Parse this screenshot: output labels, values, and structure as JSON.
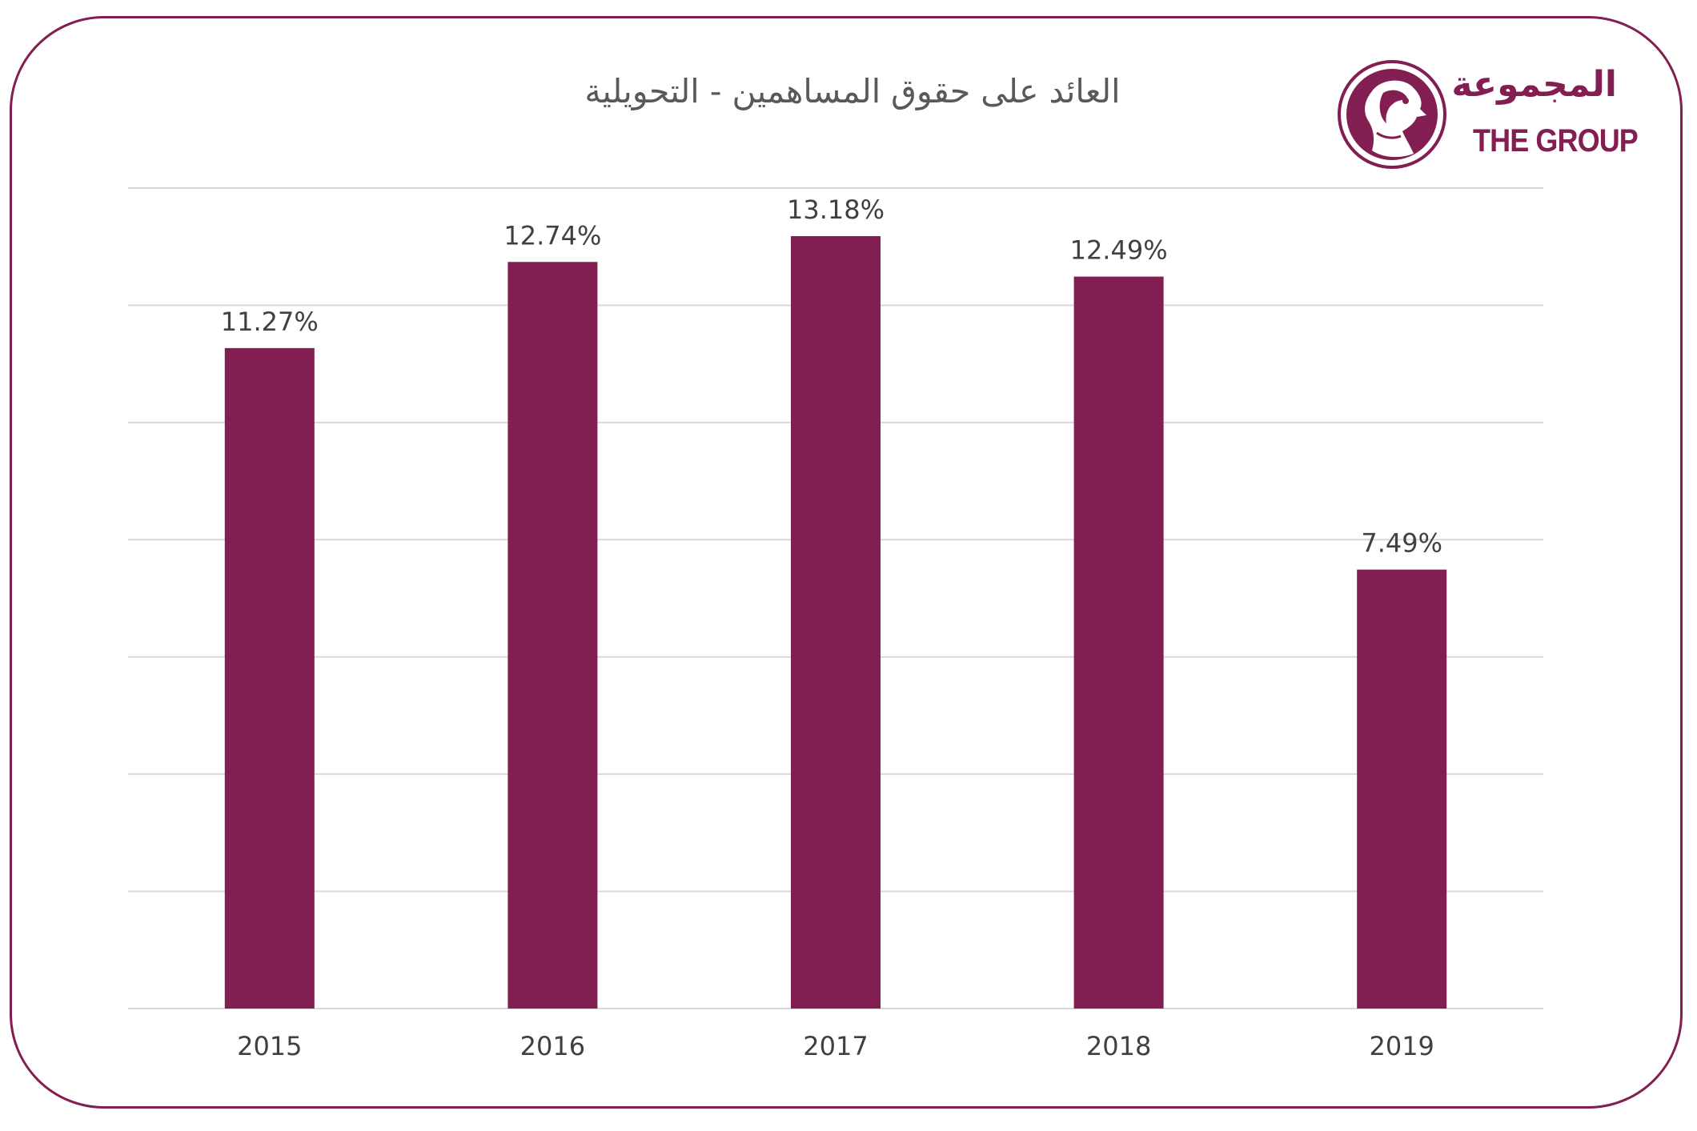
{
  "title": "العائد على حقوق المساهمين - التحويلية",
  "logo": {
    "arabic_name": "المجموعة",
    "english_name": "THE GROUP",
    "emblem_icon": "falcon-head-icon"
  },
  "colors": {
    "bar": "#821e52",
    "frame": "#821e52",
    "grid": "#d9d9d9",
    "text": "#404040"
  },
  "chart_data": {
    "type": "bar",
    "categories": [
      "2015",
      "2016",
      "2017",
      "2018",
      "2019"
    ],
    "values": [
      11.27,
      12.74,
      13.18,
      12.49,
      7.49
    ],
    "data_labels": [
      "11.27%",
      "12.74%",
      "13.18%",
      "12.49%",
      "7.49%"
    ],
    "unit": "%",
    "ylim": [
      0,
      14
    ],
    "y_gridlines": [
      0,
      2,
      4,
      6,
      8,
      10,
      12,
      14
    ],
    "y_tick_labels_shown": false,
    "grid": true,
    "legend": "none"
  }
}
